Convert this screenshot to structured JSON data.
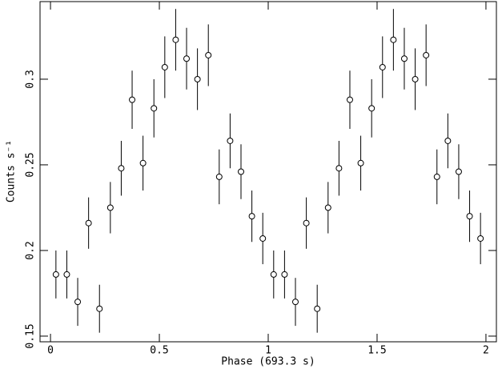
{
  "chart_data": {
    "type": "scatter",
    "xlabel": "Phase (693.3 s)",
    "ylabel": "Counts s⁻¹",
    "x": [
      0.025,
      0.075,
      0.125,
      0.175,
      0.225,
      0.275,
      0.325,
      0.375,
      0.425,
      0.475,
      0.525,
      0.575,
      0.625,
      0.675,
      0.725,
      0.775,
      0.825,
      0.875,
      0.925,
      0.975,
      1.025,
      1.075,
      1.125,
      1.175,
      1.225,
      1.275,
      1.325,
      1.375,
      1.425,
      1.475,
      1.525,
      1.575,
      1.625,
      1.675,
      1.725,
      1.775,
      1.825,
      1.875,
      1.925,
      1.975
    ],
    "series": [
      {
        "color": "#000000",
        "values": [
          0.186,
          0.186,
          0.17,
          0.216,
          0.166,
          0.225,
          0.248,
          0.288,
          0.251,
          0.283,
          0.307,
          0.323,
          0.312,
          0.3,
          0.314,
          0.243,
          0.264,
          0.246,
          0.22,
          0.207,
          0.186,
          0.186,
          0.17,
          0.216,
          0.166,
          0.225,
          0.248,
          0.288,
          0.251,
          0.283,
          0.307,
          0.323,
          0.312,
          0.3,
          0.314,
          0.243,
          0.264,
          0.246,
          0.22,
          0.207
        ],
        "errors": [
          0.014,
          0.014,
          0.014,
          0.015,
          0.014,
          0.015,
          0.016,
          0.017,
          0.016,
          0.017,
          0.018,
          0.018,
          0.018,
          0.018,
          0.018,
          0.016,
          0.016,
          0.016,
          0.015,
          0.015,
          0.014,
          0.014,
          0.014,
          0.015,
          0.014,
          0.015,
          0.016,
          0.017,
          0.016,
          0.017,
          0.018,
          0.018,
          0.018,
          0.018,
          0.018,
          0.016,
          0.016,
          0.016,
          0.015,
          0.015
        ]
      }
    ],
    "xlim": [
      -0.048,
      2.048
    ],
    "ylim": [
      0.1467,
      0.3453
    ],
    "xticks": [
      0,
      0.5,
      1,
      1.5,
      2
    ],
    "yticks": [
      0.15,
      0.2,
      0.25,
      0.3
    ]
  }
}
